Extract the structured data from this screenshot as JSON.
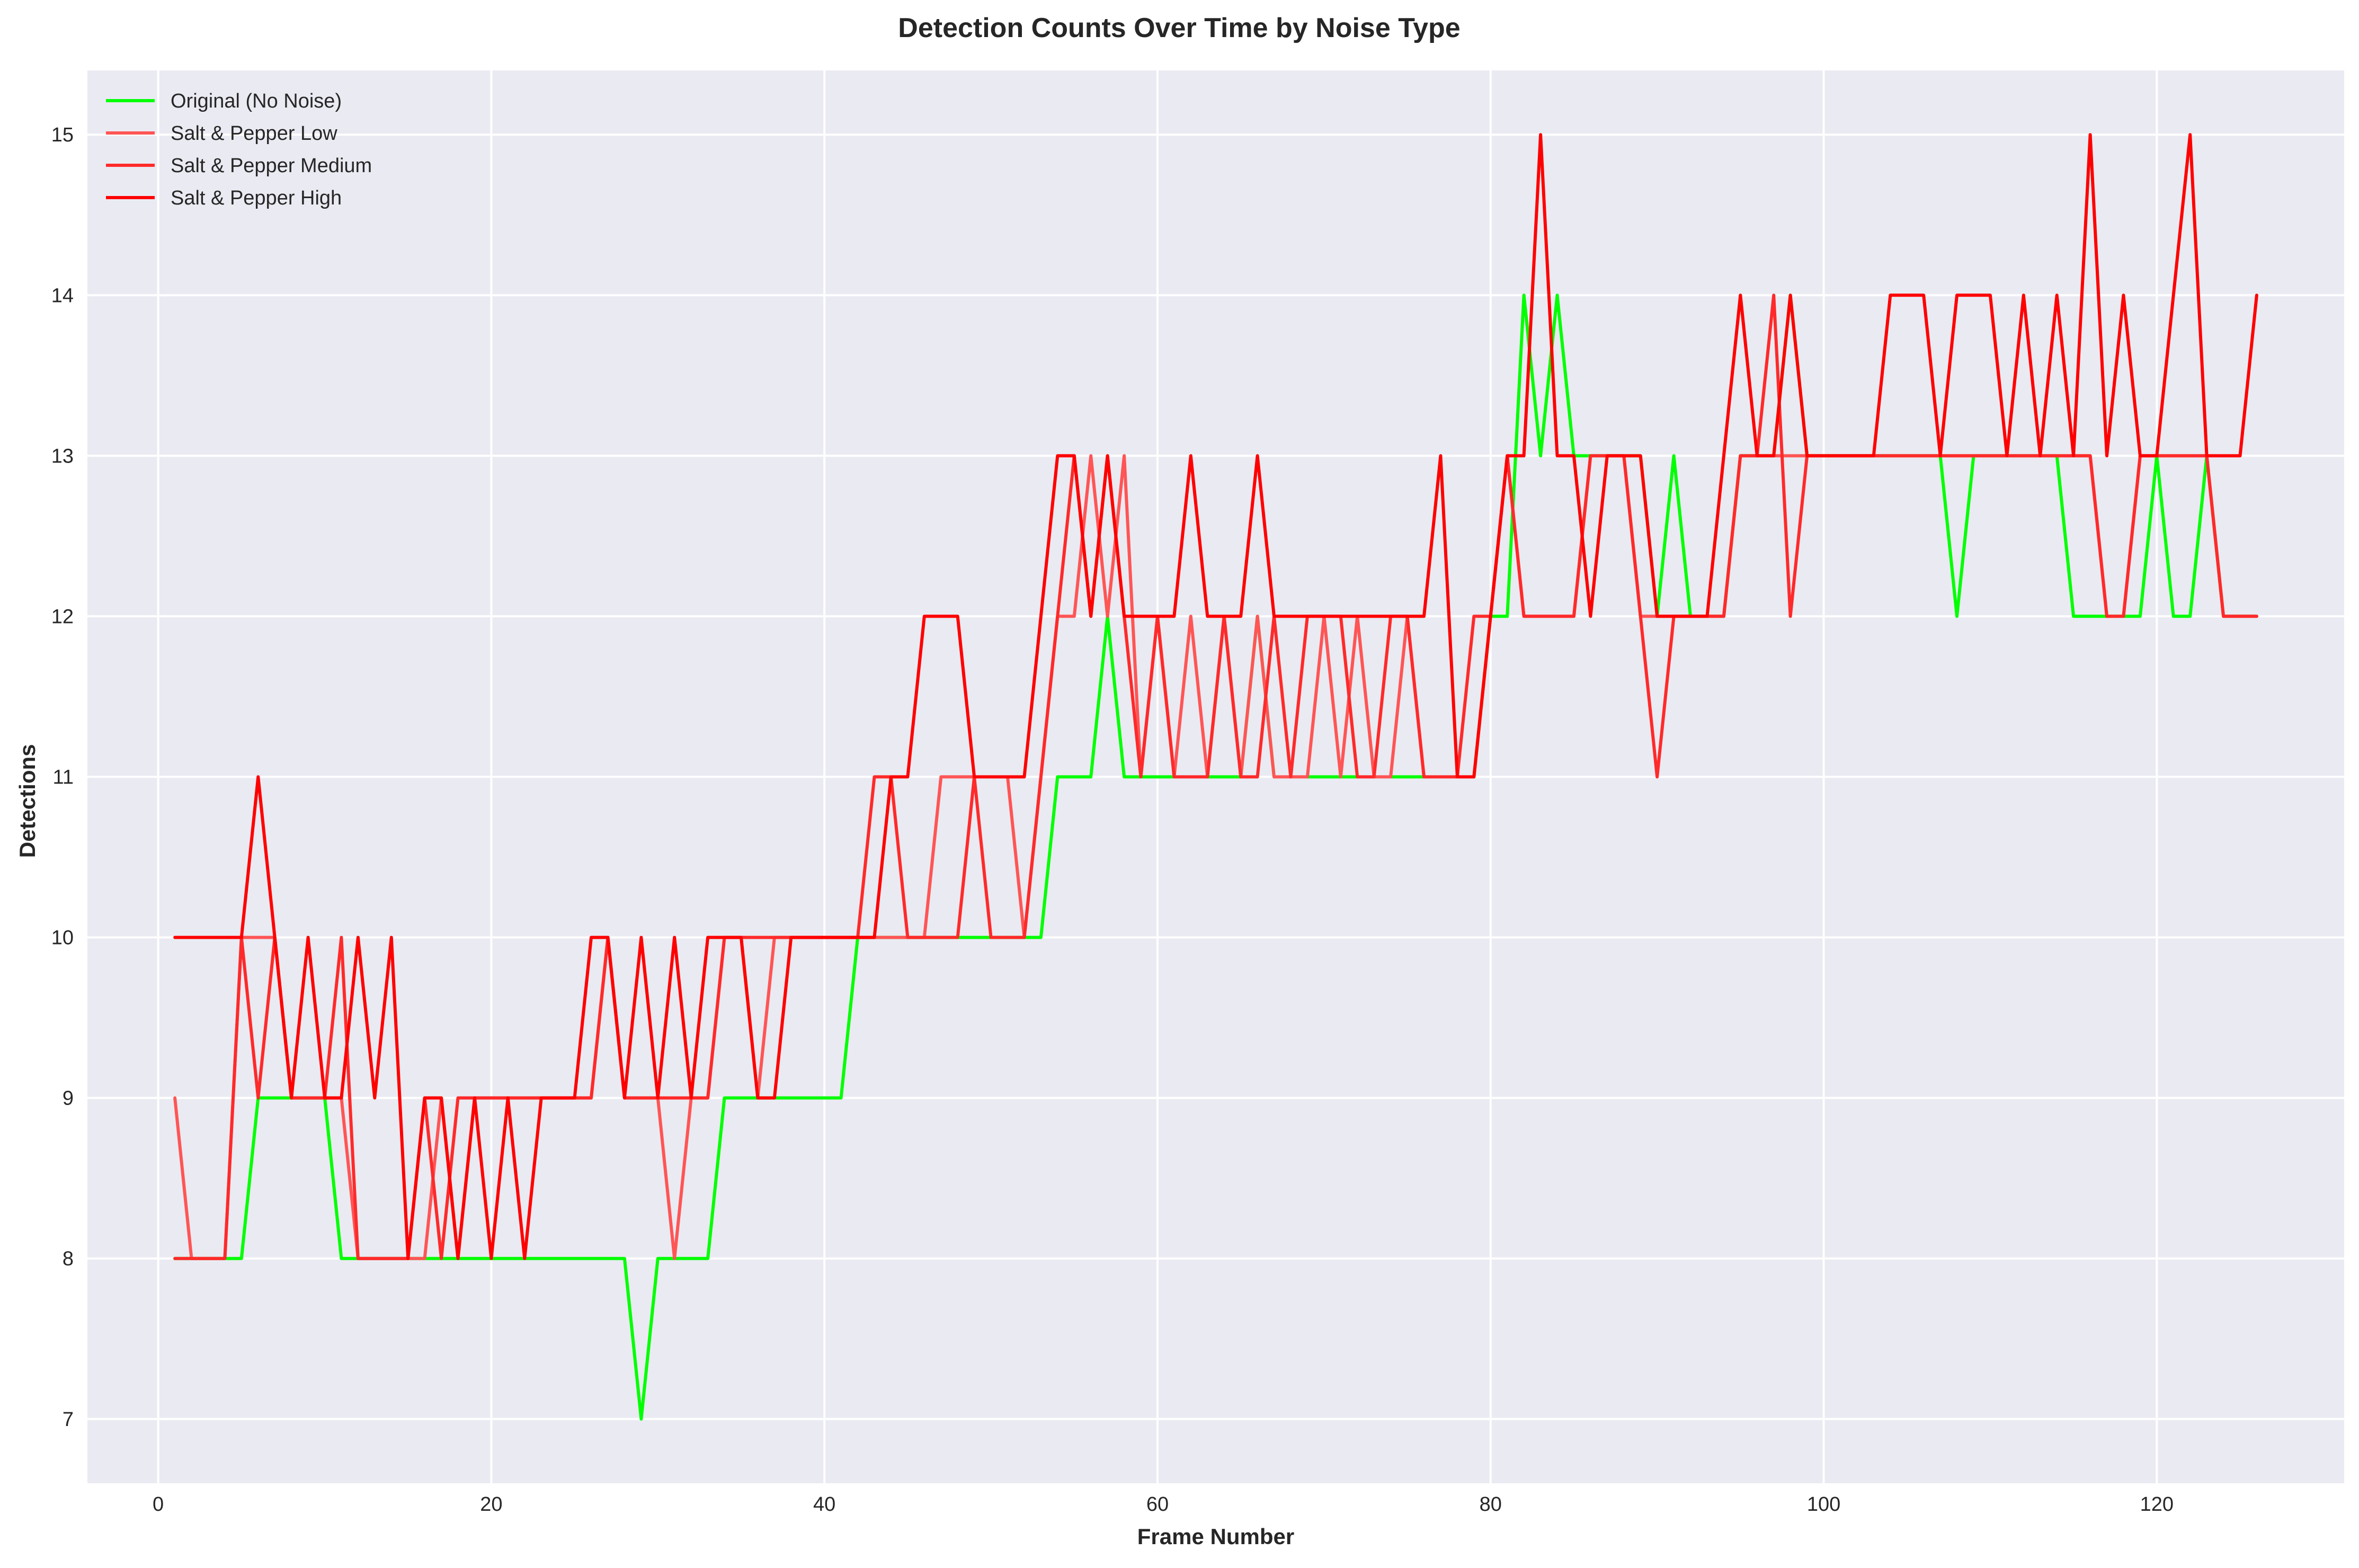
{
  "chart_data": {
    "type": "line",
    "title": "Detection Counts Over Time by Noise Type",
    "xlabel": "Frame Number",
    "ylabel": "Detections",
    "xlim": [
      -4.25,
      131.25
    ],
    "ylim": [
      6.6,
      15.4
    ],
    "x_ticks": [
      0,
      20,
      40,
      60,
      80,
      100,
      120
    ],
    "y_ticks": [
      7,
      8,
      9,
      10,
      11,
      12,
      13,
      14,
      15
    ],
    "x_tick_labels": [
      "0",
      "20",
      "40",
      "60",
      "80",
      "100",
      "120"
    ],
    "y_tick_labels": [
      "7",
      "8",
      "9",
      "10",
      "11",
      "12",
      "13",
      "14",
      "15"
    ],
    "grid": true,
    "background": "#eaeaf2",
    "legend": {
      "placement": "top-left"
    },
    "x": [
      1,
      2,
      3,
      4,
      5,
      6,
      7,
      8,
      9,
      10,
      11,
      12,
      13,
      14,
      15,
      16,
      17,
      18,
      19,
      20,
      21,
      22,
      23,
      24,
      25,
      26,
      27,
      28,
      29,
      30,
      31,
      32,
      33,
      34,
      35,
      36,
      37,
      38,
      39,
      40,
      41,
      42,
      43,
      44,
      45,
      46,
      47,
      48,
      49,
      50,
      51,
      52,
      53,
      54,
      55,
      56,
      57,
      58,
      59,
      60,
      61,
      62,
      63,
      64,
      65,
      66,
      67,
      68,
      69,
      70,
      71,
      72,
      73,
      74,
      75,
      76,
      77,
      78,
      79,
      80,
      81,
      82,
      83,
      84,
      85,
      86,
      87,
      88,
      89,
      90,
      91,
      92,
      93,
      94,
      95,
      96,
      97,
      98,
      99,
      100,
      101,
      102,
      103,
      104,
      105,
      106,
      107,
      108,
      109,
      110,
      111,
      112,
      113,
      114,
      115,
      116,
      117,
      118,
      119,
      120,
      121,
      122,
      123,
      124,
      125,
      126
    ],
    "series": [
      {
        "name": "Original (No Noise)",
        "color": "#00ff00",
        "values": [
          8,
          8,
          8,
          8,
          8,
          9,
          9,
          9,
          9,
          9,
          8,
          8,
          8,
          8,
          8,
          8,
          8,
          8,
          8,
          8,
          8,
          8,
          8,
          8,
          8,
          8,
          8,
          8,
          7,
          8,
          8,
          8,
          8,
          9,
          9,
          9,
          9,
          9,
          9,
          9,
          9,
          10,
          10,
          10,
          10,
          10,
          10,
          10,
          10,
          10,
          10,
          10,
          10,
          11,
          11,
          11,
          12,
          11,
          11,
          11,
          11,
          11,
          11,
          11,
          11,
          12,
          11,
          11,
          11,
          11,
          11,
          11,
          11,
          11,
          11,
          11,
          11,
          11,
          11,
          12,
          12,
          14,
          13,
          14,
          13,
          13,
          13,
          13,
          13,
          12,
          13,
          12,
          12,
          12,
          13,
          13,
          13,
          14,
          13,
          13,
          13,
          13,
          13,
          13,
          13,
          13,
          13,
          12,
          13,
          13,
          13,
          13,
          13,
          13,
          12,
          12,
          12,
          12,
          12,
          13,
          12,
          12,
          13,
          12,
          12,
          12
        ]
      },
      {
        "name": "Salt & Pepper Low",
        "color": "#ff5555",
        "values": [
          9,
          8,
          8,
          8,
          10,
          10,
          10,
          9,
          9,
          9,
          9,
          8,
          8,
          8,
          8,
          8,
          9,
          8,
          9,
          9,
          9,
          9,
          9,
          9,
          9,
          9,
          10,
          9,
          9,
          9,
          8,
          9,
          9,
          10,
          10,
          9,
          10,
          10,
          10,
          10,
          10,
          10,
          10,
          10,
          10,
          10,
          11,
          11,
          11,
          11,
          11,
          10,
          11,
          12,
          12,
          13,
          12,
          13,
          11,
          12,
          11,
          12,
          11,
          12,
          11,
          12,
          11,
          11,
          11,
          12,
          11,
          12,
          11,
          11,
          12,
          11,
          11,
          11,
          11,
          12,
          13,
          12,
          12,
          12,
          12,
          13,
          13,
          13,
          12,
          12,
          12,
          12,
          12,
          12,
          13,
          13,
          13,
          13,
          13,
          13,
          13,
          13,
          13,
          13,
          13,
          13,
          13,
          13,
          13,
          13,
          13,
          13,
          13,
          13,
          13,
          13,
          12,
          12,
          13,
          13,
          13,
          13,
          13,
          12,
          12,
          12
        ]
      },
      {
        "name": "Salt & Pepper Medium",
        "color": "#ff2a2a",
        "values": [
          8,
          8,
          8,
          8,
          10,
          9,
          10,
          9,
          9,
          9,
          10,
          8,
          8,
          8,
          8,
          9,
          8,
          9,
          9,
          9,
          9,
          9,
          9,
          9,
          9,
          9,
          10,
          9,
          9,
          9,
          9,
          9,
          9,
          10,
          10,
          10,
          10,
          10,
          10,
          10,
          10,
          10,
          11,
          11,
          10,
          10,
          10,
          10,
          11,
          10,
          10,
          10,
          11,
          12,
          13,
          12,
          13,
          12,
          11,
          12,
          11,
          11,
          11,
          12,
          11,
          11,
          12,
          11,
          12,
          12,
          12,
          11,
          11,
          12,
          12,
          11,
          11,
          11,
          12,
          12,
          13,
          12,
          12,
          12,
          12,
          13,
          13,
          13,
          12,
          11,
          12,
          12,
          12,
          12,
          13,
          13,
          14,
          12,
          13,
          13,
          13,
          13,
          13,
          13,
          13,
          13,
          13,
          13,
          13,
          13,
          13,
          13,
          13,
          13,
          13,
          13,
          12,
          12,
          13,
          13,
          13,
          13,
          13,
          12,
          12,
          12
        ]
      },
      {
        "name": "Salt & Pepper High",
        "color": "#ff0000",
        "values": [
          10,
          10,
          10,
          10,
          10,
          11,
          10,
          9,
          10,
          9,
          9,
          10,
          9,
          10,
          8,
          9,
          9,
          8,
          9,
          8,
          9,
          8,
          9,
          9,
          9,
          10,
          10,
          9,
          10,
          9,
          10,
          9,
          10,
          10,
          10,
          9,
          9,
          10,
          10,
          10,
          10,
          10,
          10,
          11,
          11,
          12,
          12,
          12,
          11,
          11,
          11,
          11,
          12,
          13,
          13,
          12,
          13,
          12,
          12,
          12,
          12,
          13,
          12,
          12,
          12,
          13,
          12,
          12,
          12,
          12,
          12,
          12,
          12,
          12,
          12,
          12,
          13,
          11,
          11,
          12,
          13,
          13,
          15,
          13,
          13,
          12,
          13,
          13,
          13,
          12,
          12,
          12,
          12,
          13,
          14,
          13,
          13,
          14,
          13,
          13,
          13,
          13,
          13,
          14,
          14,
          14,
          13,
          14,
          14,
          14,
          13,
          14,
          13,
          14,
          13,
          15,
          13,
          14,
          13,
          13,
          14,
          15,
          13,
          13,
          13,
          14
        ]
      }
    ]
  }
}
